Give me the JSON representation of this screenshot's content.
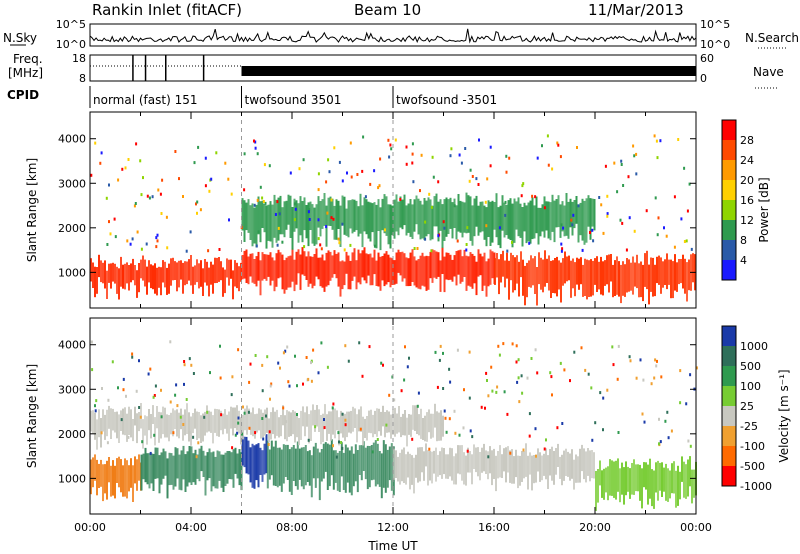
{
  "header": {
    "station": "Rankin Inlet (fitACF)",
    "beam": "Beam 10",
    "date": "11/Mar/2013"
  },
  "strips": {
    "nsky_label": "N.Sky",
    "nsky_ticks": [
      "10^5",
      "10^0"
    ],
    "nsearch_label": "N.Search",
    "nsearch_ticks": [
      "10^5",
      "10^0"
    ],
    "freq_label_1": "Freq.",
    "freq_label_2": "[MHz]",
    "freq_ticks": [
      "18",
      "8"
    ],
    "nave_label": "Nave",
    "nave_ticks": [
      "60",
      "0"
    ],
    "cpid_label": "CPID",
    "cpid_segments": [
      {
        "label": "normal (fast) 151",
        "start_hour": 0
      },
      {
        "label": "twofsound 3501",
        "start_hour": 6
      },
      {
        "label": "twofsound -3501",
        "start_hour": 12
      }
    ]
  },
  "chart_data": [
    {
      "type": "heatmap",
      "title": "",
      "ylabel": "Slant Range [km]",
      "xlabel": "",
      "x_range_hours": [
        0,
        24
      ],
      "ylim": [
        200,
        4600
      ],
      "ytick_labels": [
        "1000",
        "2000",
        "3000",
        "4000"
      ],
      "ytick_values": [
        1000,
        2000,
        3000,
        4000
      ],
      "colorbar": {
        "label": "Power [dB]",
        "tick_labels": [
          "28",
          "24",
          "20",
          "16",
          "12",
          "8",
          "4"
        ],
        "colors": [
          "#ff0000",
          "#ff4a00",
          "#ff9a00",
          "#ffd000",
          "#8fd400",
          "#2f9a4f",
          "#2a5aa8",
          "#1a1aff"
        ]
      },
      "echo_bands": [
        {
          "x_start_hours": 0,
          "x_end_hours": 6,
          "y_from": 600,
          "y_to": 1300,
          "color": "#ff2a00"
        },
        {
          "x_start_hours": 6,
          "x_end_hours": 16,
          "y_from": 700,
          "y_to": 1500,
          "color": "#ff2000"
        },
        {
          "x_start_hours": 16,
          "x_end_hours": 24,
          "y_from": 500,
          "y_to": 1400,
          "color": "#ff3300"
        },
        {
          "x_start_hours": 6,
          "x_end_hours": 20,
          "y_from": 1700,
          "y_to": 2700,
          "color": "#2f9a4f"
        }
      ]
    },
    {
      "type": "heatmap",
      "title": "",
      "ylabel": "Slant Range [km]",
      "xlabel": "Time UT",
      "x_range_hours": [
        0,
        24
      ],
      "ylim": [
        200,
        4600
      ],
      "xtick_labels": [
        "00:00",
        "04:00",
        "08:00",
        "12:00",
        "16:00",
        "20:00",
        "00:00"
      ],
      "xtick_hours": [
        0,
        4,
        8,
        12,
        16,
        20,
        24
      ],
      "ytick_labels": [
        "1000",
        "2000",
        "3000",
        "4000"
      ],
      "ytick_values": [
        1000,
        2000,
        3000,
        4000
      ],
      "colorbar": {
        "label": "Velocity [m s⁻¹]",
        "tick_labels": [
          "1000",
          "500",
          "100",
          "25",
          "-25",
          "-100",
          "-500",
          "-1000"
        ],
        "colors": [
          "#1a3aa8",
          "#2f6f5a",
          "#2f9a4f",
          "#77cc33",
          "#c8c8c0",
          "#f0a030",
          "#ff6a00",
          "#ff0000"
        ]
      },
      "echo_bands": [
        {
          "x_start_hours": 0,
          "x_end_hours": 2,
          "y_from": 600,
          "y_to": 1500,
          "color": "#f07a10"
        },
        {
          "x_start_hours": 2,
          "x_end_hours": 6,
          "y_from": 800,
          "y_to": 1700,
          "color": "#3a8a60"
        },
        {
          "x_start_hours": 6,
          "x_end_hours": 7,
          "y_from": 900,
          "y_to": 1900,
          "color": "#1a3aa8"
        },
        {
          "x_start_hours": 7,
          "x_end_hours": 12,
          "y_from": 700,
          "y_to": 1800,
          "color": "#3a8a60"
        },
        {
          "x_start_hours": 12,
          "x_end_hours": 20,
          "y_from": 900,
          "y_to": 1700,
          "color": "#c8c8c0"
        },
        {
          "x_start_hours": 20,
          "x_end_hours": 24,
          "y_from": 500,
          "y_to": 1400,
          "color": "#77cc33"
        },
        {
          "x_start_hours": 0,
          "x_end_hours": 14,
          "y_from": 1900,
          "y_to": 2600,
          "color": "#c8c8c0"
        }
      ]
    }
  ]
}
